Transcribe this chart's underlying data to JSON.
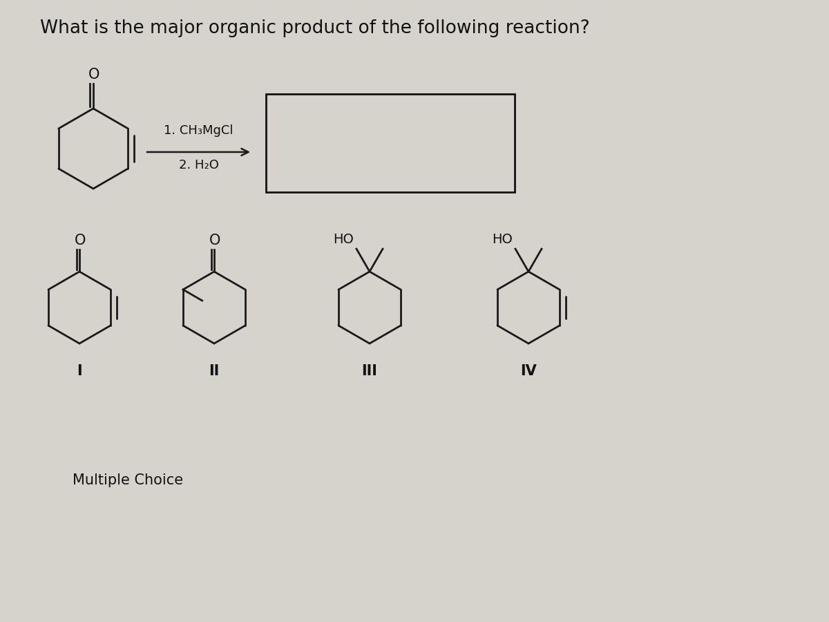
{
  "title": "What is the major organic product of the following reaction?",
  "reagent_line1": "1. CH₃MgCl",
  "reagent_line2": "2. H₂O",
  "label_I": "I",
  "label_II": "II",
  "label_III": "III",
  "label_IV": "IV",
  "bg_color": "#d6d2cc",
  "line_color": "#1a1a1a",
  "text_color": "#111111",
  "box_color": "#111111",
  "title_fontsize": 19,
  "mol_label_fontsize": 15,
  "O_fontsize": 15,
  "HO_fontsize": 14,
  "reagent_fontsize": 13,
  "mc_fontsize": 15
}
